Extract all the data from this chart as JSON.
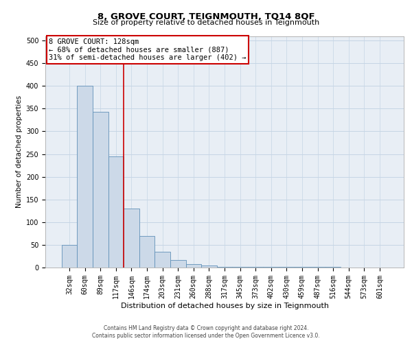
{
  "title": "8, GROVE COURT, TEIGNMOUTH, TQ14 8QF",
  "subtitle": "Size of property relative to detached houses in Teignmouth",
  "xlabel": "Distribution of detached houses by size in Teignmouth",
  "ylabel": "Number of detached properties",
  "bar_values": [
    50,
    400,
    343,
    245,
    130,
    70,
    35,
    17,
    7,
    5,
    2,
    1,
    1,
    1,
    1,
    1,
    1,
    1,
    0,
    0,
    0
  ],
  "bar_labels": [
    "32sqm",
    "60sqm",
    "89sqm",
    "117sqm",
    "146sqm",
    "174sqm",
    "203sqm",
    "231sqm",
    "260sqm",
    "288sqm",
    "317sqm",
    "345sqm",
    "373sqm",
    "402sqm",
    "430sqm",
    "459sqm",
    "487sqm",
    "516sqm",
    "544sqm",
    "573sqm",
    "601sqm"
  ],
  "bar_color": "#ccd9e8",
  "bar_edge_color": "#6090b8",
  "bar_edge_width": 0.6,
  "red_line_x": 3.5,
  "red_line_color": "#cc0000",
  "annotation_text": "8 GROVE COURT: 128sqm\n← 68% of detached houses are smaller (887)\n31% of semi-detached houses are larger (402) →",
  "annotation_box_color": "#ffffff",
  "annotation_box_edge": "#cc0000",
  "ylim": [
    0,
    510
  ],
  "yticks": [
    0,
    50,
    100,
    150,
    200,
    250,
    300,
    350,
    400,
    450,
    500
  ],
  "grid_color": "#c5d5e5",
  "background_color": "#e8eef5",
  "footer_line1": "Contains HM Land Registry data © Crown copyright and database right 2024.",
  "footer_line2": "Contains public sector information licensed under the Open Government Licence v3.0.",
  "title_fontsize": 9.5,
  "subtitle_fontsize": 8,
  "tick_fontsize": 7,
  "ylabel_fontsize": 7.5,
  "xlabel_fontsize": 8
}
